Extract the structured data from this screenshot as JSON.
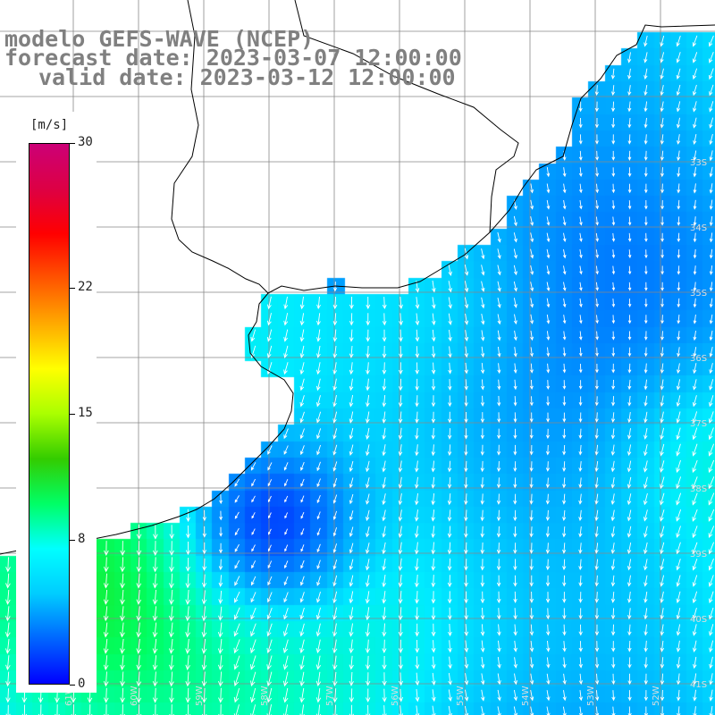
{
  "title": {
    "line1": "modelo GEFS-WAVE (NCEP)",
    "line2": "forecast date: 2023-03-07 12:00:00",
    "line3": "valid date: 2023-03-12 12:00:00"
  },
  "legend": {
    "units": "[m/s]",
    "ticks": [
      "30",
      "22",
      "15",
      "8",
      "0"
    ],
    "tick_values": [
      30,
      22,
      15,
      8,
      0
    ],
    "range": [
      0,
      30
    ],
    "colors": [
      "#0000ff",
      "#0066ff",
      "#00ccff",
      "#00ffff",
      "#00ff66",
      "#33cc00",
      "#aaff00",
      "#ffff00",
      "#ffaa00",
      "#ff5500",
      "#ff0000",
      "#dd0044",
      "#cc0077"
    ]
  },
  "map": {
    "lat_labels": [
      "33S",
      "34S",
      "35S",
      "36S",
      "37S",
      "38S",
      "39S",
      "40S",
      "41S"
    ],
    "lon_labels": [
      "61W",
      "60W",
      "59W",
      "58W",
      "57W",
      "56W",
      "55W",
      "54W",
      "53W",
      "52W",
      "51W"
    ],
    "colors": {
      "land": "#ffffff",
      "coast": "#000000",
      "grid": "#888888",
      "arrow": "#ffffff"
    }
  }
}
